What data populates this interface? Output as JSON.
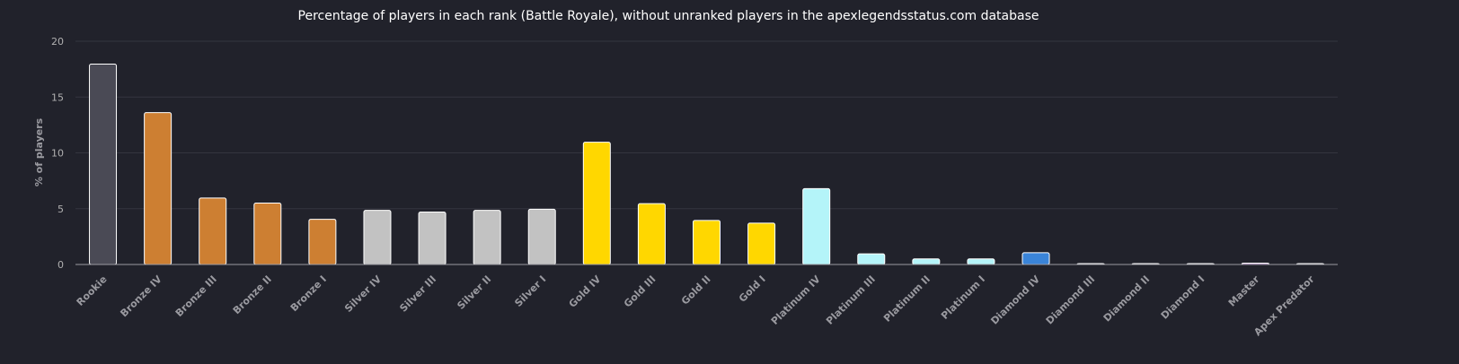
{
  "chart_data": {
    "type": "bar",
    "title": "Percentage of players in each rank (Battle Royale), without unranked players in the apexlegendsstatus.com database",
    "ylabel": "% of players",
    "xlabel": "",
    "ylim": [
      0,
      20
    ],
    "yticks": [
      0,
      5,
      10,
      15,
      20
    ],
    "grid": true,
    "legend": "none",
    "categories": [
      "Rookie",
      "Bronze IV",
      "Bronze III",
      "Bronze II",
      "Bronze I",
      "Silver IV",
      "Silver III",
      "Silver II",
      "Silver I",
      "Gold IV",
      "Gold III",
      "Gold II",
      "Gold I",
      "Platinum IV",
      "Platinum III",
      "Platinum II",
      "Platinum I",
      "Diamond IV",
      "Diamond III",
      "Diamond II",
      "Diamond I",
      "Master",
      "Apex Predator"
    ],
    "values": [
      17.95,
      13.6,
      5.95,
      5.5,
      4.05,
      4.85,
      4.7,
      4.85,
      4.95,
      10.95,
      5.45,
      3.95,
      3.7,
      6.8,
      0.95,
      0.5,
      0.5,
      1.05,
      0.08,
      0.08,
      0.08,
      0.12,
      0.03
    ],
    "colors": [
      "#4a4a55",
      "#cd7f32",
      "#cd7f32",
      "#cd7f32",
      "#cd7f32",
      "#c2c2c2",
      "#c2c2c2",
      "#c2c2c2",
      "#c2c2c2",
      "#ffd700",
      "#ffd700",
      "#ffd700",
      "#ffd700",
      "#b4f4f9",
      "#b4f4f9",
      "#b4f4f9",
      "#b4f4f9",
      "#3a84d8",
      "#b4f4f9",
      "#b4f4f9",
      "#b4f4f9",
      "#b07cc6",
      "#d9534f"
    ]
  }
}
